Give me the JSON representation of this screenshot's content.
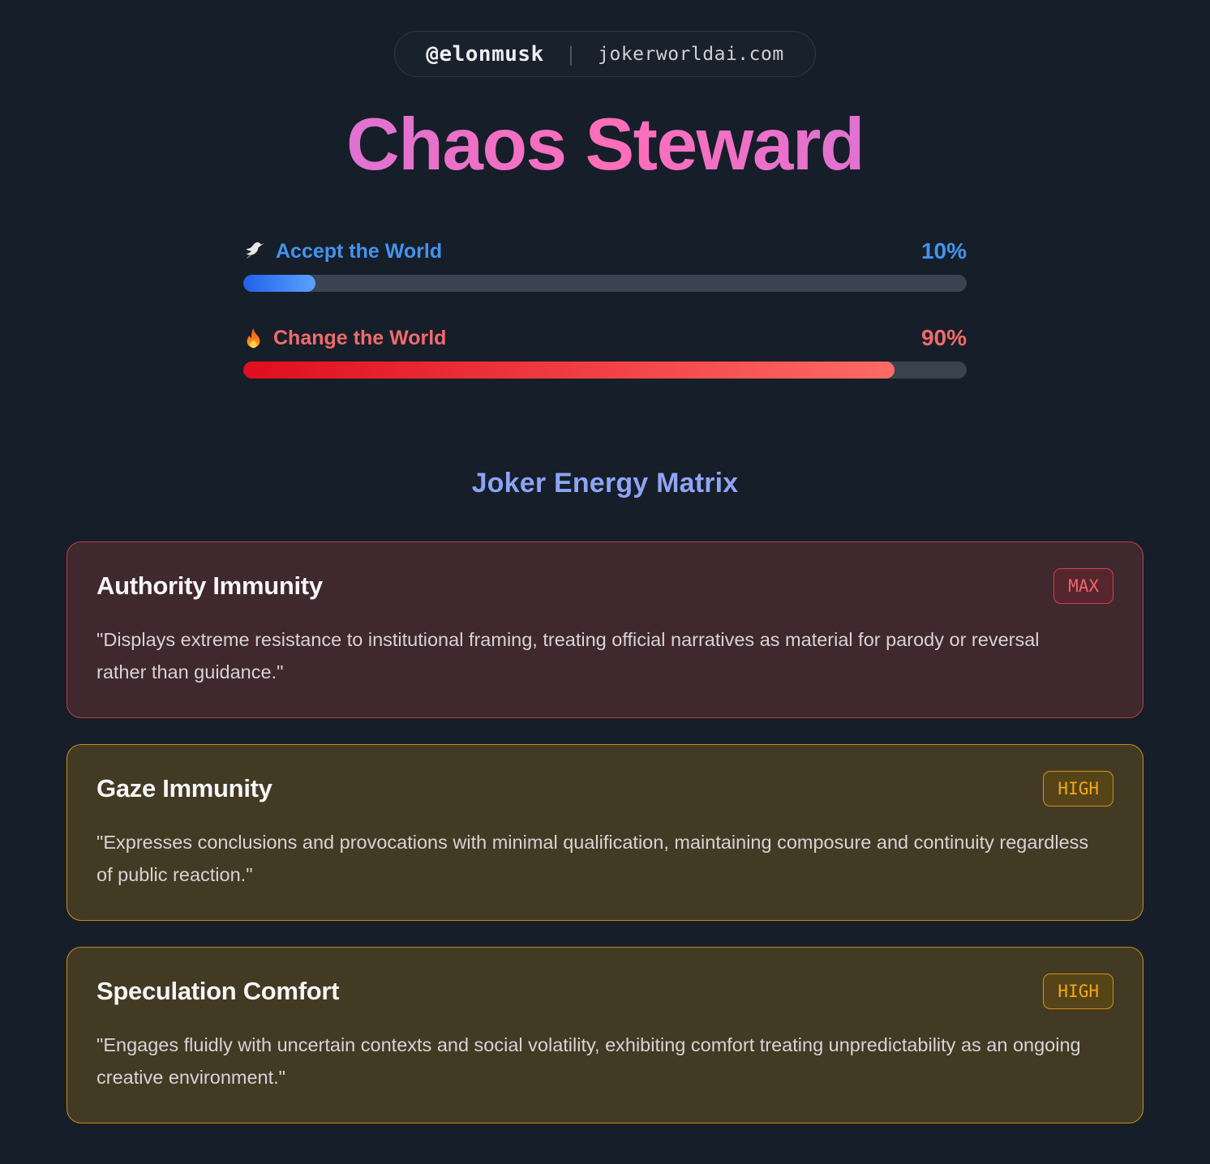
{
  "header": {
    "handle": "@elonmusk",
    "separator": "|",
    "domain": "jokerworldai.com"
  },
  "title": "Chaos Steward",
  "bars": [
    {
      "icon": "dove-icon",
      "label": "Accept the World",
      "value": "10%",
      "percent": 10,
      "label_color": "#4393ee",
      "fill_start": "#2160e8",
      "fill_end": "#5aa2ff"
    },
    {
      "icon": "fire-icon",
      "label": "Change the World",
      "value": "90%",
      "percent": 90,
      "label_color": "#f06b6b",
      "fill_start": "#e00d1e",
      "fill_end": "#ff6b64"
    }
  ],
  "section_title": "Joker Energy Matrix",
  "cards": [
    {
      "title": "Authority Immunity",
      "badge": "MAX",
      "theme": "red",
      "accent": "#c03d47",
      "description": "\"Displays extreme resistance to institutional framing, treating official narratives as material for parody or reversal rather than guidance.\""
    },
    {
      "title": "Gaze Immunity",
      "badge": "HIGH",
      "theme": "gold",
      "accent": "#c88d16",
      "description": "\"Expresses conclusions and provocations with minimal qualification, maintaining composure and continuity regardless of public reaction.\""
    },
    {
      "title": "Speculation Comfort",
      "badge": "HIGH",
      "theme": "gold",
      "accent": "#c88d16",
      "description": "\"Engages fluidly with uncertain contexts and social volatility, exhibiting comfort treating unpredictability as an ongoing creative environment.\""
    }
  ],
  "colors": {
    "page_bg": "#161e29",
    "bar_track": "#3a4350",
    "title_gradient": [
      "#b678f0",
      "#ff6eb8",
      "#b678f0"
    ],
    "section_title_gradient": [
      "#7ba2f2",
      "#a2a5f6"
    ]
  }
}
